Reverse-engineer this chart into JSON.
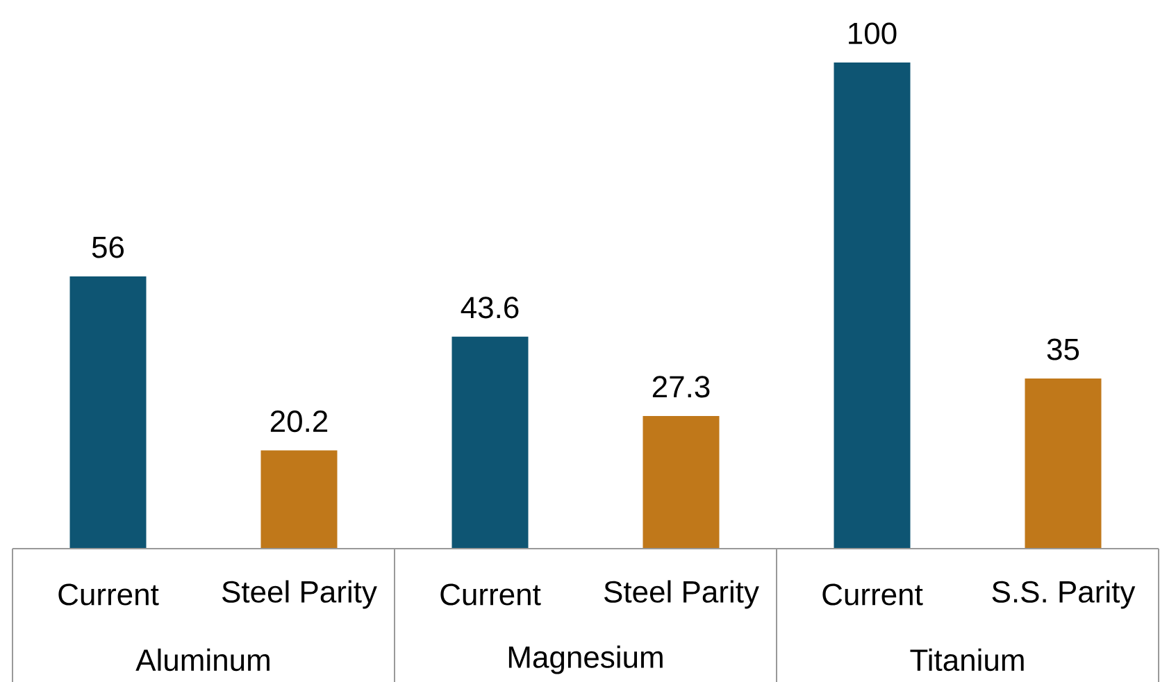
{
  "chart_data": {
    "type": "bar",
    "categories": [
      "Current",
      "Steel Parity",
      "Current",
      "Steel Parity",
      "Current",
      "S.S. Parity"
    ],
    "values": [
      56,
      20.2,
      43.6,
      27.3,
      100,
      35
    ],
    "colors": [
      "#0e5573",
      "#c0781a",
      "#0e5573",
      "#c0781a",
      "#0e5573",
      "#c0781a"
    ],
    "data_labels": true,
    "annotations": [
      "Aluminum",
      "Magnesium",
      "Titanium"
    ]
  }
}
